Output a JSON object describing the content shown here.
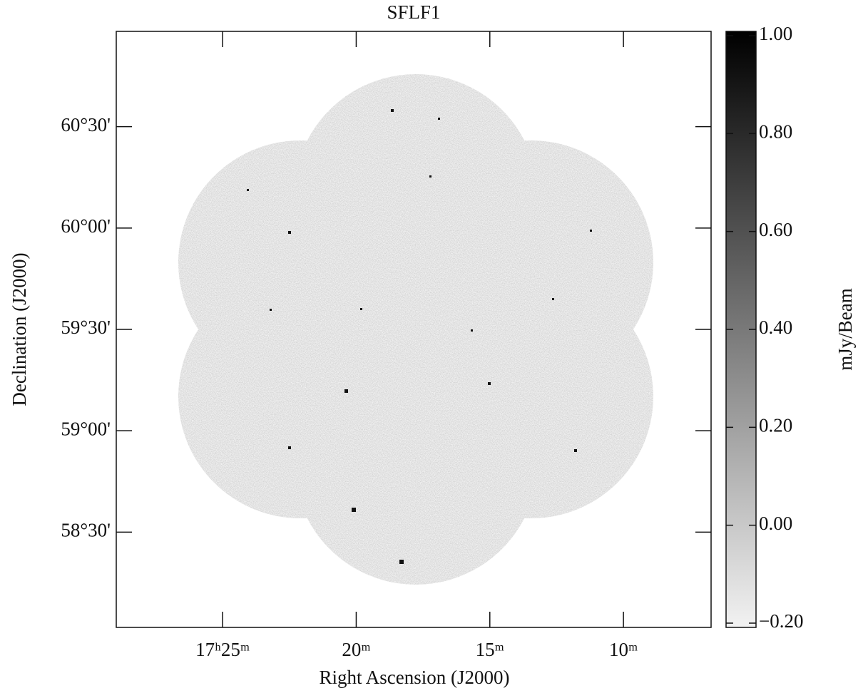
{
  "chart_data": {
    "type": "image",
    "title": "SFLF1",
    "xlabel": "Right Ascension (J2000)",
    "ylabel": "Declination (J2000)",
    "xlim": [
      28.98,
      6.72
    ],
    "xticks": [
      {
        "value": 25,
        "label": "17ʰ25ᵐ"
      },
      {
        "value": 20,
        "label": "20ᵐ"
      },
      {
        "value": 15,
        "label": "15ᵐ"
      },
      {
        "value": 10,
        "label": "10ᵐ"
      }
    ],
    "ylim": [
      58.03,
      60.97
    ],
    "yticks": [
      {
        "value": 60.5,
        "label": "60°30'"
      },
      {
        "value": 60,
        "label": "60°00'"
      },
      {
        "value": 59.5,
        "label": "59°30'"
      },
      {
        "value": 59,
        "label": "59°00'"
      },
      {
        "value": 58.5,
        "label": "58°30'"
      }
    ],
    "colorbar": {
      "label": "mJy/Beam",
      "clim": [
        -0.2,
        1.0
      ],
      "ticks": [
        {
          "value": 1,
          "label": "1.00"
        },
        {
          "value": 0.8,
          "label": "0.80"
        },
        {
          "value": 0.6,
          "label": "0.60"
        },
        {
          "value": 0.4,
          "label": "0.40"
        },
        {
          "value": 0.2,
          "label": "0.20"
        },
        {
          "value": 0,
          "label": "0.00"
        },
        {
          "value": -0.2,
          "label": "−0.20"
        }
      ]
    }
  }
}
